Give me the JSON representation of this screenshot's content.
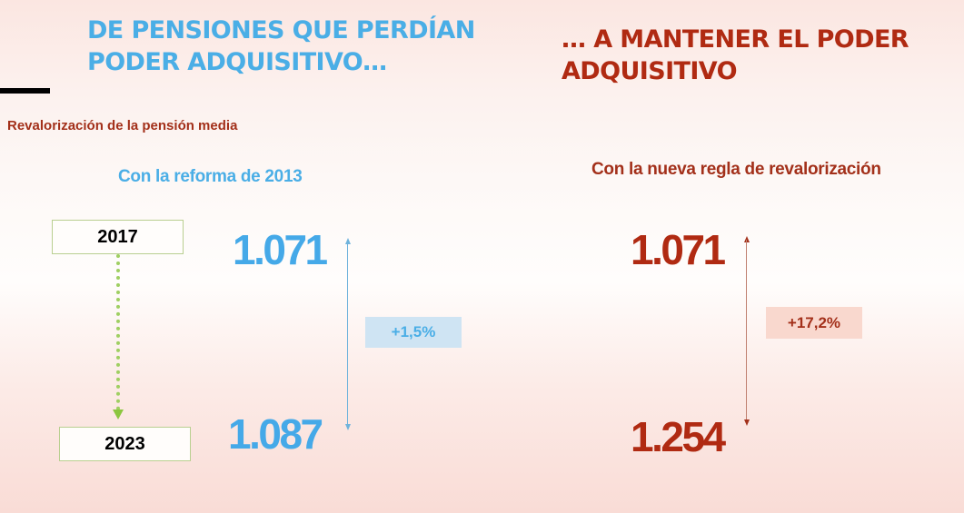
{
  "titles": {
    "left": "DE PENSIONES QUE PERDÍAN PODER ADQUISITIVO…",
    "right": "… A MANTENER EL PODER ADQUISITIVO"
  },
  "subtitle": "Revalorización de la pensión media",
  "panels": {
    "left": {
      "heading": "Con la reforma de 2013",
      "value_2017": "1.071",
      "value_2023": "1.087",
      "change": "+1,5%",
      "color": "#45a9e8"
    },
    "right": {
      "heading": "Con la nueva regla de revalorización",
      "value_2017": "1.071",
      "value_2023": "1.254",
      "change": "+17,2%",
      "color": "#b02a12"
    }
  },
  "years": {
    "start": "2017",
    "end": "2023"
  },
  "chart_data": {
    "type": "table",
    "title": "Revalorización de la pensión media",
    "categories": [
      "2017",
      "2023"
    ],
    "series": [
      {
        "name": "Con la reforma de 2013",
        "values": [
          1071,
          1087
        ],
        "change_pct": 1.5
      },
      {
        "name": "Con la nueva regla de revalorización",
        "values": [
          1071,
          1254
        ],
        "change_pct": 17.2
      }
    ],
    "annotations": [
      "+1,5%",
      "+17,2%"
    ]
  }
}
